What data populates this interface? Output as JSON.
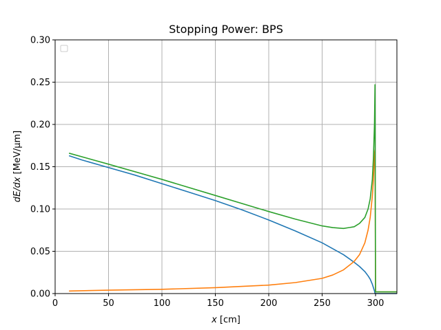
{
  "chart_data": {
    "type": "line",
    "title": "Stopping Power: BPS",
    "xlabel_var": "x",
    "xlabel_unit": " [cm]",
    "ylabel_var": "dE/dx",
    "ylabel_unit": " [MeV/μm]",
    "xlim": [
      0,
      320
    ],
    "ylim": [
      0.0,
      0.3
    ],
    "xticks": [
      0,
      50,
      100,
      150,
      200,
      250,
      300
    ],
    "yticks": [
      "0.00",
      "0.05",
      "0.10",
      "0.15",
      "0.20",
      "0.25",
      "0.30"
    ],
    "grid": true,
    "legend": "upper-left (empty)",
    "series": [
      {
        "color": "#1f77b4",
        "x": [
          13,
          25,
          50,
          75,
          100,
          125,
          150,
          175,
          200,
          225,
          250,
          260,
          270,
          280,
          285,
          290,
          293,
          295,
          297,
          298,
          299,
          299.5,
          300,
          305,
          320
        ],
        "y": [
          0.163,
          0.158,
          0.149,
          0.14,
          0.13,
          0.12,
          0.11,
          0.099,
          0.087,
          0.074,
          0.06,
          0.053,
          0.046,
          0.037,
          0.032,
          0.026,
          0.021,
          0.017,
          0.011,
          0.007,
          0.003,
          0.0,
          0.0,
          0.0,
          0.0
        ]
      },
      {
        "color": "#ff7f0e",
        "x": [
          13,
          50,
          100,
          150,
          200,
          225,
          250,
          260,
          270,
          280,
          285,
          290,
          293,
          295,
          297,
          298,
          299,
          299.5,
          300,
          305,
          320
        ],
        "y": [
          0.003,
          0.004,
          0.005,
          0.007,
          0.01,
          0.013,
          0.018,
          0.022,
          0.028,
          0.038,
          0.046,
          0.06,
          0.075,
          0.09,
          0.115,
          0.135,
          0.165,
          0.17,
          0.002,
          0.002,
          0.002
        ]
      },
      {
        "color": "#2ca02c",
        "x": [
          13,
          50,
          100,
          150,
          200,
          225,
          250,
          260,
          270,
          280,
          285,
          290,
          293,
          295,
          297,
          298,
          299,
          299.5,
          300,
          300.5,
          305,
          320
        ],
        "y": [
          0.166,
          0.153,
          0.135,
          0.116,
          0.097,
          0.088,
          0.08,
          0.078,
          0.077,
          0.079,
          0.083,
          0.09,
          0.1,
          0.112,
          0.135,
          0.16,
          0.2,
          0.247,
          0.002,
          0.002,
          0.002,
          0.002
        ]
      }
    ]
  }
}
